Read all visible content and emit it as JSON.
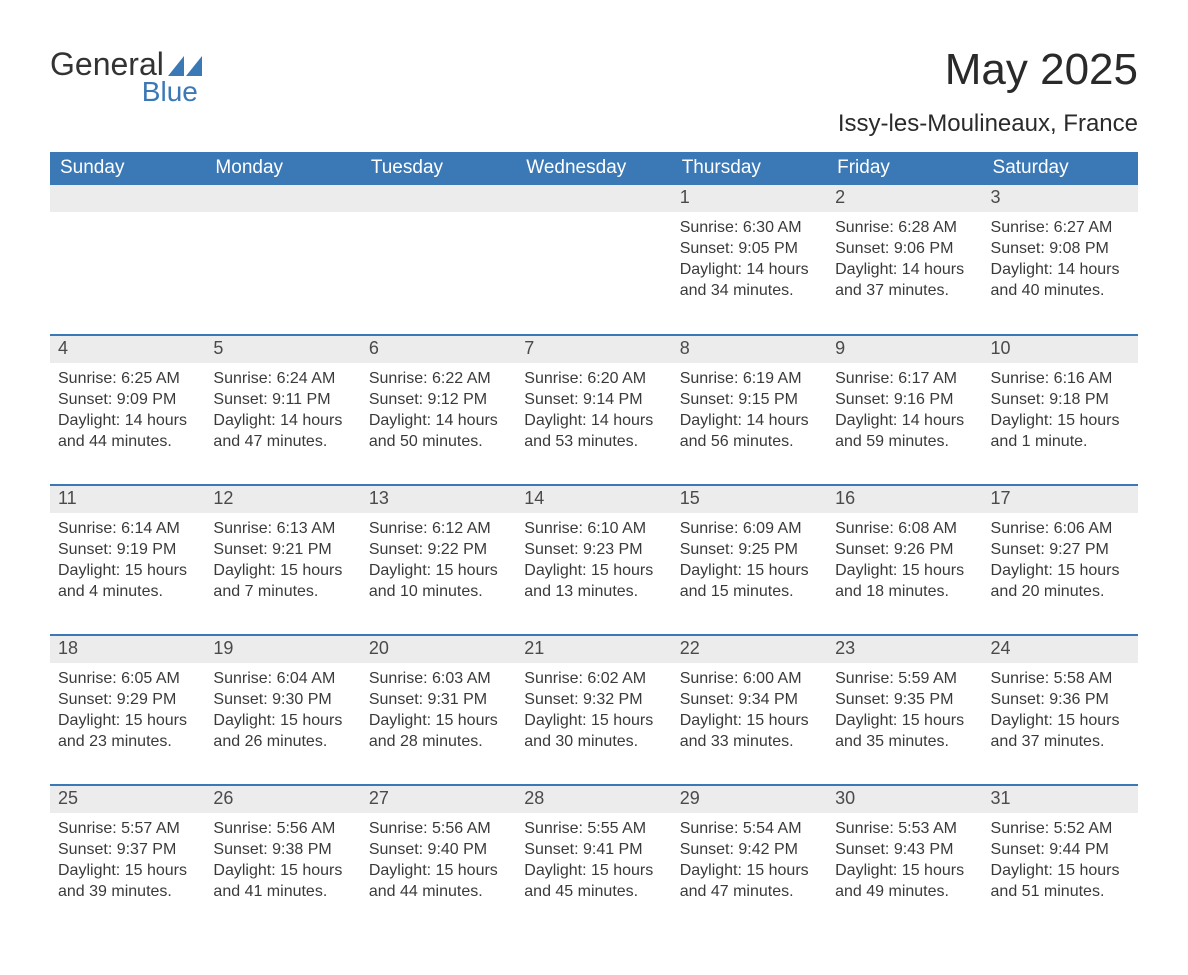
{
  "brand": {
    "word1": "General",
    "word2": "Blue",
    "accent_color": "#3b78b6"
  },
  "title": "May 2025",
  "location": "Issy-les-Moulineaux, France",
  "colors": {
    "header_bg": "#3b78b6",
    "header_text": "#ffffff",
    "daynum_bg": "#ececec",
    "daynum_text": "#4a4a4a",
    "body_text": "#3a3a3a",
    "rule": "#3b78b6",
    "page_bg": "#ffffff"
  },
  "weekdays": [
    "Sunday",
    "Monday",
    "Tuesday",
    "Wednesday",
    "Thursday",
    "Friday",
    "Saturday"
  ],
  "weeks": [
    [
      null,
      null,
      null,
      null,
      {
        "n": "1",
        "sunrise": "6:30 AM",
        "sunset": "9:05 PM",
        "daylight": "14 hours and 34 minutes."
      },
      {
        "n": "2",
        "sunrise": "6:28 AM",
        "sunset": "9:06 PM",
        "daylight": "14 hours and 37 minutes."
      },
      {
        "n": "3",
        "sunrise": "6:27 AM",
        "sunset": "9:08 PM",
        "daylight": "14 hours and 40 minutes."
      }
    ],
    [
      {
        "n": "4",
        "sunrise": "6:25 AM",
        "sunset": "9:09 PM",
        "daylight": "14 hours and 44 minutes."
      },
      {
        "n": "5",
        "sunrise": "6:24 AM",
        "sunset": "9:11 PM",
        "daylight": "14 hours and 47 minutes."
      },
      {
        "n": "6",
        "sunrise": "6:22 AM",
        "sunset": "9:12 PM",
        "daylight": "14 hours and 50 minutes."
      },
      {
        "n": "7",
        "sunrise": "6:20 AM",
        "sunset": "9:14 PM",
        "daylight": "14 hours and 53 minutes."
      },
      {
        "n": "8",
        "sunrise": "6:19 AM",
        "sunset": "9:15 PM",
        "daylight": "14 hours and 56 minutes."
      },
      {
        "n": "9",
        "sunrise": "6:17 AM",
        "sunset": "9:16 PM",
        "daylight": "14 hours and 59 minutes."
      },
      {
        "n": "10",
        "sunrise": "6:16 AM",
        "sunset": "9:18 PM",
        "daylight": "15 hours and 1 minute."
      }
    ],
    [
      {
        "n": "11",
        "sunrise": "6:14 AM",
        "sunset": "9:19 PM",
        "daylight": "15 hours and 4 minutes."
      },
      {
        "n": "12",
        "sunrise": "6:13 AM",
        "sunset": "9:21 PM",
        "daylight": "15 hours and 7 minutes."
      },
      {
        "n": "13",
        "sunrise": "6:12 AM",
        "sunset": "9:22 PM",
        "daylight": "15 hours and 10 minutes."
      },
      {
        "n": "14",
        "sunrise": "6:10 AM",
        "sunset": "9:23 PM",
        "daylight": "15 hours and 13 minutes."
      },
      {
        "n": "15",
        "sunrise": "6:09 AM",
        "sunset": "9:25 PM",
        "daylight": "15 hours and 15 minutes."
      },
      {
        "n": "16",
        "sunrise": "6:08 AM",
        "sunset": "9:26 PM",
        "daylight": "15 hours and 18 minutes."
      },
      {
        "n": "17",
        "sunrise": "6:06 AM",
        "sunset": "9:27 PM",
        "daylight": "15 hours and 20 minutes."
      }
    ],
    [
      {
        "n": "18",
        "sunrise": "6:05 AM",
        "sunset": "9:29 PM",
        "daylight": "15 hours and 23 minutes."
      },
      {
        "n": "19",
        "sunrise": "6:04 AM",
        "sunset": "9:30 PM",
        "daylight": "15 hours and 26 minutes."
      },
      {
        "n": "20",
        "sunrise": "6:03 AM",
        "sunset": "9:31 PM",
        "daylight": "15 hours and 28 minutes."
      },
      {
        "n": "21",
        "sunrise": "6:02 AM",
        "sunset": "9:32 PM",
        "daylight": "15 hours and 30 minutes."
      },
      {
        "n": "22",
        "sunrise": "6:00 AM",
        "sunset": "9:34 PM",
        "daylight": "15 hours and 33 minutes."
      },
      {
        "n": "23",
        "sunrise": "5:59 AM",
        "sunset": "9:35 PM",
        "daylight": "15 hours and 35 minutes."
      },
      {
        "n": "24",
        "sunrise": "5:58 AM",
        "sunset": "9:36 PM",
        "daylight": "15 hours and 37 minutes."
      }
    ],
    [
      {
        "n": "25",
        "sunrise": "5:57 AM",
        "sunset": "9:37 PM",
        "daylight": "15 hours and 39 minutes."
      },
      {
        "n": "26",
        "sunrise": "5:56 AM",
        "sunset": "9:38 PM",
        "daylight": "15 hours and 41 minutes."
      },
      {
        "n": "27",
        "sunrise": "5:56 AM",
        "sunset": "9:40 PM",
        "daylight": "15 hours and 44 minutes."
      },
      {
        "n": "28",
        "sunrise": "5:55 AM",
        "sunset": "9:41 PM",
        "daylight": "15 hours and 45 minutes."
      },
      {
        "n": "29",
        "sunrise": "5:54 AM",
        "sunset": "9:42 PM",
        "daylight": "15 hours and 47 minutes."
      },
      {
        "n": "30",
        "sunrise": "5:53 AM",
        "sunset": "9:43 PM",
        "daylight": "15 hours and 49 minutes."
      },
      {
        "n": "31",
        "sunrise": "5:52 AM",
        "sunset": "9:44 PM",
        "daylight": "15 hours and 51 minutes."
      }
    ]
  ],
  "labels": {
    "sunrise": "Sunrise:",
    "sunset": "Sunset:",
    "daylight": "Daylight:"
  }
}
